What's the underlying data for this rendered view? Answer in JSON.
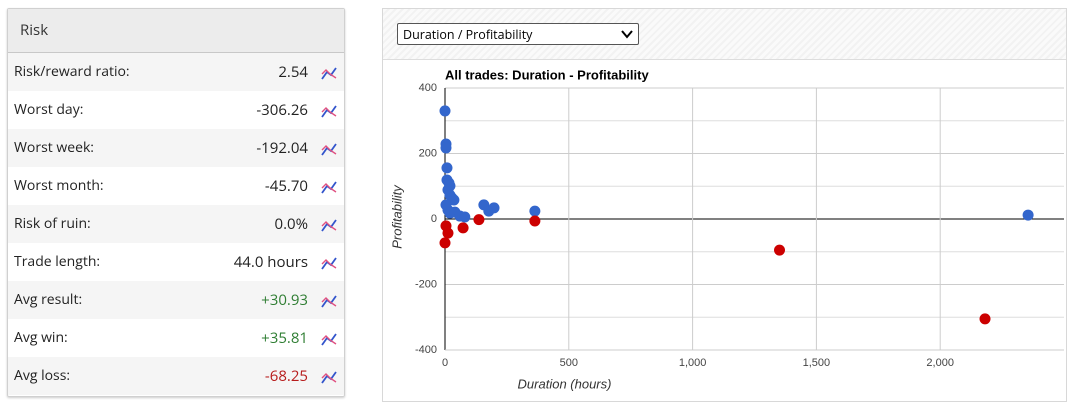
{
  "risk": {
    "title": "Risk",
    "rows": [
      {
        "label": "Risk/reward ratio:",
        "value": "2.54",
        "tone": "neutral"
      },
      {
        "label": "Worst day:",
        "value": "-306.26",
        "tone": "neutral"
      },
      {
        "label": "Worst week:",
        "value": "-192.04",
        "tone": "neutral"
      },
      {
        "label": "Worst month:",
        "value": "-45.70",
        "tone": "neutral"
      },
      {
        "label": "Risk of ruin:",
        "value": "0.0%",
        "tone": "neutral"
      },
      {
        "label": "Trade length:",
        "value": "44.0 hours",
        "tone": "neutral"
      },
      {
        "label": "Avg result:",
        "value": "+30.93",
        "tone": "positive"
      },
      {
        "label": "Avg win:",
        "value": "+35.81",
        "tone": "positive"
      },
      {
        "label": "Avg loss:",
        "value": "-68.25",
        "tone": "negative"
      }
    ]
  },
  "selector": {
    "selected": "Duration / Profitability"
  },
  "chart_data": {
    "type": "scatter",
    "title": "All trades: Duration - Profitability",
    "x_label": "Duration (hours)",
    "y_label": "Profitability",
    "xlim": [
      0,
      2500
    ],
    "ylim": [
      -400,
      400
    ],
    "xticks": [
      0,
      500,
      {
        "value": 1000,
        "label": "1,000"
      },
      {
        "value": 1500,
        "label": "1,500"
      },
      {
        "value": 2000,
        "label": "2,000"
      }
    ],
    "yticks": [
      -400,
      -200,
      0,
      200,
      400
    ],
    "yminor": [
      -300,
      -100,
      100,
      300
    ],
    "grid": true,
    "series": [
      {
        "color": "#3366cc",
        "x": [
          0,
          4,
          4,
          8,
          8,
          16,
          20,
          12,
          20,
          28,
          36,
          4,
          12,
          20,
          40,
          60,
          80,
          157,
          177,
          198,
          363,
          2355
        ],
        "values": [
          330,
          229,
          217,
          156,
          119,
          110,
          101,
          89,
          73,
          64,
          58,
          43,
          27,
          18,
          21,
          9,
          6,
          43,
          24,
          34,
          24,
          12
        ]
      },
      {
        "color": "#cc0000",
        "x": [
          0,
          12,
          4,
          73,
          137,
          363,
          1351,
          2181
        ],
        "values": [
          -73,
          -43,
          -21,
          -27,
          -2,
          -6,
          -95,
          -305
        ]
      }
    ]
  }
}
